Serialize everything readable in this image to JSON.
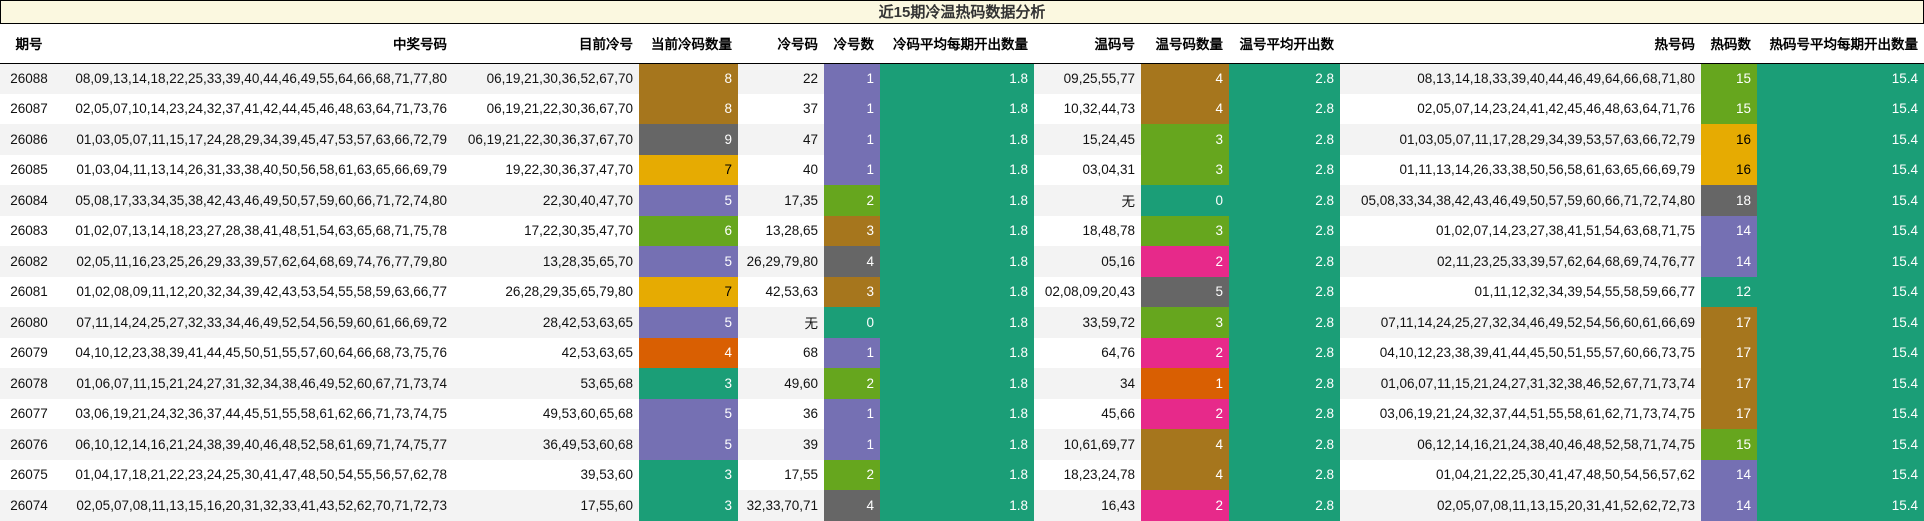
{
  "title": "近15期冷温热码数据分析",
  "headers": {
    "issue": "期号",
    "winning": "中奖号码",
    "cur_cold": "目前冷号",
    "cur_cold_count": "当前冷码数量",
    "cold_codes": "冷号码",
    "cold_num": "冷号数",
    "cold_avg": "冷码平均每期开出数量",
    "warm_codes": "温码号",
    "warm_count": "温号码数量",
    "warm_avg": "温号平均开出数",
    "hot_codes": "热号码",
    "hot_count": "热码数",
    "hot_avg": "热码号平均每期开出数量"
  },
  "colors": {
    "brown": "#a6761d",
    "gray": "#666666",
    "yellow": "#e6ab02",
    "purple": "#7570b3",
    "green": "#66a61e",
    "teal": "#1b9e77",
    "orange": "#d95f02",
    "pink": "#e7298a",
    "title_bg": "#fbf8e0"
  },
  "rows": [
    {
      "issue": "26088",
      "winning": "08,09,13,14,18,22,25,33,39,40,44,46,49,55,64,66,68,71,77,80",
      "cur_cold": "06,19,21,30,36,52,67,70",
      "cur_cold_count": "8",
      "cold_codes": "22",
      "cold_num": "1",
      "cold_avg": "1.8",
      "warm_codes": "09,25,55,77",
      "warm_count": "4",
      "warm_avg": "2.8",
      "hot_codes": "08,13,14,18,33,39,40,44,46,49,64,66,68,71,80",
      "hot_count": "15",
      "hot_avg": "15.4"
    },
    {
      "issue": "26087",
      "winning": "02,05,07,10,14,23,24,32,37,41,42,44,45,46,48,63,64,71,73,76",
      "cur_cold": "06,19,21,22,30,36,67,70",
      "cur_cold_count": "8",
      "cold_codes": "37",
      "cold_num": "1",
      "cold_avg": "1.8",
      "warm_codes": "10,32,44,73",
      "warm_count": "4",
      "warm_avg": "2.8",
      "hot_codes": "02,05,07,14,23,24,41,42,45,46,48,63,64,71,76",
      "hot_count": "15",
      "hot_avg": "15.4"
    },
    {
      "issue": "26086",
      "winning": "01,03,05,07,11,15,17,24,28,29,34,39,45,47,53,57,63,66,72,79",
      "cur_cold": "06,19,21,22,30,36,37,67,70",
      "cur_cold_count": "9",
      "cold_codes": "47",
      "cold_num": "1",
      "cold_avg": "1.8",
      "warm_codes": "15,24,45",
      "warm_count": "3",
      "warm_avg": "2.8",
      "hot_codes": "01,03,05,07,11,17,28,29,34,39,53,57,63,66,72,79",
      "hot_count": "16",
      "hot_avg": "15.4"
    },
    {
      "issue": "26085",
      "winning": "01,03,04,11,13,14,26,31,33,38,40,50,56,58,61,63,65,66,69,79",
      "cur_cold": "19,22,30,36,37,47,70",
      "cur_cold_count": "7",
      "cold_codes": "40",
      "cold_num": "1",
      "cold_avg": "1.8",
      "warm_codes": "03,04,31",
      "warm_count": "3",
      "warm_avg": "2.8",
      "hot_codes": "01,11,13,14,26,33,38,50,56,58,61,63,65,66,69,79",
      "hot_count": "16",
      "hot_avg": "15.4"
    },
    {
      "issue": "26084",
      "winning": "05,08,17,33,34,35,38,42,43,46,49,50,57,59,60,66,71,72,74,80",
      "cur_cold": "22,30,40,47,70",
      "cur_cold_count": "5",
      "cold_codes": "17,35",
      "cold_num": "2",
      "cold_avg": "1.8",
      "warm_codes": "无",
      "warm_count": "0",
      "warm_avg": "2.8",
      "hot_codes": "05,08,33,34,38,42,43,46,49,50,57,59,60,66,71,72,74,80",
      "hot_count": "18",
      "hot_avg": "15.4"
    },
    {
      "issue": "26083",
      "winning": "01,02,07,13,14,18,23,27,28,38,41,48,51,54,63,65,68,71,75,78",
      "cur_cold": "17,22,30,35,47,70",
      "cur_cold_count": "6",
      "cold_codes": "13,28,65",
      "cold_num": "3",
      "cold_avg": "1.8",
      "warm_codes": "18,48,78",
      "warm_count": "3",
      "warm_avg": "2.8",
      "hot_codes": "01,02,07,14,23,27,38,41,51,54,63,68,71,75",
      "hot_count": "14",
      "hot_avg": "15.4"
    },
    {
      "issue": "26082",
      "winning": "02,05,11,16,23,25,26,29,33,39,57,62,64,68,69,74,76,77,79,80",
      "cur_cold": "13,28,35,65,70",
      "cur_cold_count": "5",
      "cold_codes": "26,29,79,80",
      "cold_num": "4",
      "cold_avg": "1.8",
      "warm_codes": "05,16",
      "warm_count": "2",
      "warm_avg": "2.8",
      "hot_codes": "02,11,23,25,33,39,57,62,64,68,69,74,76,77",
      "hot_count": "14",
      "hot_avg": "15.4"
    },
    {
      "issue": "26081",
      "winning": "01,02,08,09,11,12,20,32,34,39,42,43,53,54,55,58,59,63,66,77",
      "cur_cold": "26,28,29,35,65,79,80",
      "cur_cold_count": "7",
      "cold_codes": "42,53,63",
      "cold_num": "3",
      "cold_avg": "1.8",
      "warm_codes": "02,08,09,20,43",
      "warm_count": "5",
      "warm_avg": "2.8",
      "hot_codes": "01,11,12,32,34,39,54,55,58,59,66,77",
      "hot_count": "12",
      "hot_avg": "15.4"
    },
    {
      "issue": "26080",
      "winning": "07,11,14,24,25,27,32,33,34,46,49,52,54,56,59,60,61,66,69,72",
      "cur_cold": "28,42,53,63,65",
      "cur_cold_count": "5",
      "cold_codes": "无",
      "cold_num": "0",
      "cold_avg": "1.8",
      "warm_codes": "33,59,72",
      "warm_count": "3",
      "warm_avg": "2.8",
      "hot_codes": "07,11,14,24,25,27,32,34,46,49,52,54,56,60,61,66,69",
      "hot_count": "17",
      "hot_avg": "15.4"
    },
    {
      "issue": "26079",
      "winning": "04,10,12,23,38,39,41,44,45,50,51,55,57,60,64,66,68,73,75,76",
      "cur_cold": "42,53,63,65",
      "cur_cold_count": "4",
      "cold_codes": "68",
      "cold_num": "1",
      "cold_avg": "1.8",
      "warm_codes": "64,76",
      "warm_count": "2",
      "warm_avg": "2.8",
      "hot_codes": "04,10,12,23,38,39,41,44,45,50,51,55,57,60,66,73,75",
      "hot_count": "17",
      "hot_avg": "15.4"
    },
    {
      "issue": "26078",
      "winning": "01,06,07,11,15,21,24,27,31,32,34,38,46,49,52,60,67,71,73,74",
      "cur_cold": "53,65,68",
      "cur_cold_count": "3",
      "cold_codes": "49,60",
      "cold_num": "2",
      "cold_avg": "1.8",
      "warm_codes": "34",
      "warm_count": "1",
      "warm_avg": "2.8",
      "hot_codes": "01,06,07,11,15,21,24,27,31,32,38,46,52,67,71,73,74",
      "hot_count": "17",
      "hot_avg": "15.4"
    },
    {
      "issue": "26077",
      "winning": "03,06,19,21,24,32,36,37,44,45,51,55,58,61,62,66,71,73,74,75",
      "cur_cold": "49,53,60,65,68",
      "cur_cold_count": "5",
      "cold_codes": "36",
      "cold_num": "1",
      "cold_avg": "1.8",
      "warm_codes": "45,66",
      "warm_count": "2",
      "warm_avg": "2.8",
      "hot_codes": "03,06,19,21,24,32,37,44,51,55,58,61,62,71,73,74,75",
      "hot_count": "17",
      "hot_avg": "15.4"
    },
    {
      "issue": "26076",
      "winning": "06,10,12,14,16,21,24,38,39,40,46,48,52,58,61,69,71,74,75,77",
      "cur_cold": "36,49,53,60,68",
      "cur_cold_count": "5",
      "cold_codes": "39",
      "cold_num": "1",
      "cold_avg": "1.8",
      "warm_codes": "10,61,69,77",
      "warm_count": "4",
      "warm_avg": "2.8",
      "hot_codes": "06,12,14,16,21,24,38,40,46,48,52,58,71,74,75",
      "hot_count": "15",
      "hot_avg": "15.4"
    },
    {
      "issue": "26075",
      "winning": "01,04,17,18,21,22,23,24,25,30,41,47,48,50,54,55,56,57,62,78",
      "cur_cold": "39,53,60",
      "cur_cold_count": "3",
      "cold_codes": "17,55",
      "cold_num": "2",
      "cold_avg": "1.8",
      "warm_codes": "18,23,24,78",
      "warm_count": "4",
      "warm_avg": "2.8",
      "hot_codes": "01,04,21,22,25,30,41,47,48,50,54,56,57,62",
      "hot_count": "14",
      "hot_avg": "15.4"
    },
    {
      "issue": "26074",
      "winning": "02,05,07,08,11,13,15,16,20,31,32,33,41,43,52,62,70,71,72,73",
      "cur_cold": "17,55,60",
      "cur_cold_count": "3",
      "cold_codes": "32,33,70,71",
      "cold_num": "4",
      "cold_avg": "1.8",
      "warm_codes": "16,43",
      "warm_count": "2",
      "warm_avg": "2.8",
      "hot_codes": "02,05,07,08,11,13,15,20,31,41,52,62,72,73",
      "hot_count": "14",
      "hot_avg": "15.4"
    }
  ]
}
